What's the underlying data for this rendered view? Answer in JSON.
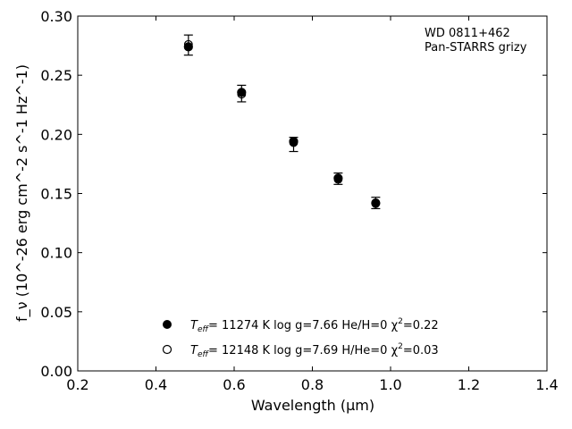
{
  "chart_data": {
    "type": "scatter",
    "xlabel": "Wavelength (μm)",
    "ylabel": "f_ν (10^-26 erg cm^-2 s^-1 Hz^-1)",
    "xlim": [
      0.2,
      1.4
    ],
    "ylim": [
      0.0,
      0.3
    ],
    "x_ticks": [
      "0.2",
      "0.4",
      "0.6",
      "0.8",
      "1.0",
      "1.2",
      "1.4"
    ],
    "y_ticks": [
      "0.00",
      "0.05",
      "0.10",
      "0.15",
      "0.20",
      "0.25",
      "0.30"
    ],
    "grid": false,
    "annotations": [
      "WD 0811+462",
      "Pan-STARRS grizy"
    ],
    "observed": {
      "x": [
        0.483,
        0.619,
        0.752,
        0.866,
        0.962
      ],
      "y": [
        0.2755,
        0.2345,
        0.1915,
        0.1625,
        0.142
      ],
      "err": [
        0.0085,
        0.007,
        0.006,
        0.0048,
        0.0048
      ]
    },
    "series": [
      {
        "name": "T_eff= 11274 K  log g=7.66  He/H=0  χ²=0.22",
        "marker": "filled",
        "x": [
          0.483,
          0.619,
          0.752,
          0.866,
          0.962
        ],
        "y": [
          0.274,
          0.2355,
          0.194,
          0.163,
          0.142
        ]
      },
      {
        "name": "T_eff= 12148 K  log g=7.69  H/He=0  χ²=0.03",
        "marker": "open",
        "x": [
          0.483,
          0.619,
          0.752,
          0.866,
          0.962
        ],
        "y": [
          0.276,
          0.234,
          0.193,
          0.162,
          0.1415
        ]
      }
    ],
    "legend": {
      "placement": "lower-center",
      "entries": [
        {
          "teff_label": "T",
          "teff_sub": "eff",
          "rest": "= 11274 K  log g=7.66  He/H=0  χ",
          "chi_sup": "2",
          "chi_val": "=0.22"
        },
        {
          "teff_label": "T",
          "teff_sub": "eff",
          "rest": "= 12148 K  log g=7.69  H/He=0  χ",
          "chi_sup": "2",
          "chi_val": "=0.03"
        }
      ]
    },
    "colors": {
      "marker": "#000000",
      "axis": "#000000",
      "background": "#ffffff"
    }
  }
}
